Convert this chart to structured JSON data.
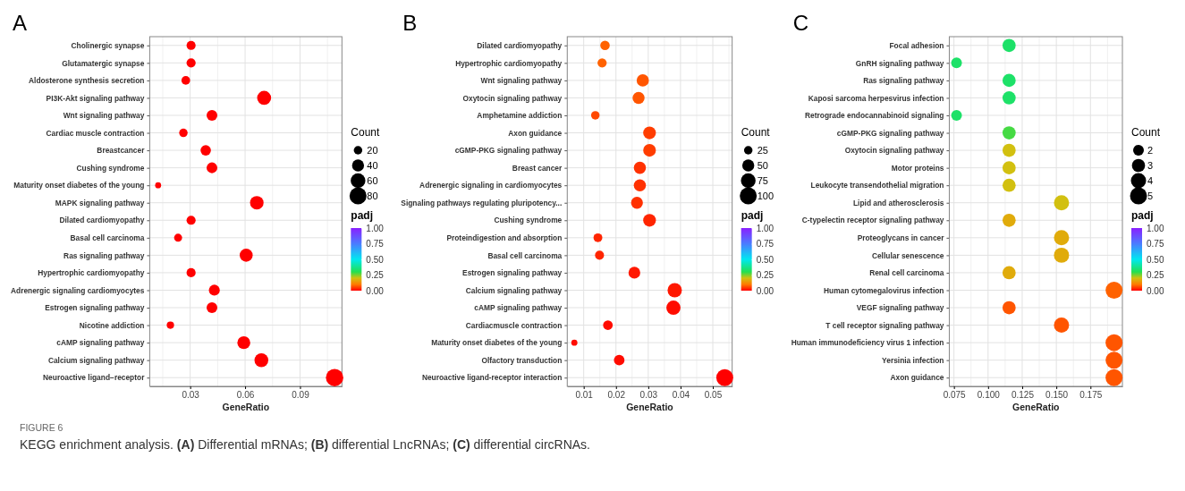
{
  "chart_data": [
    {
      "type": "bubble",
      "title": "A",
      "xlabel": "GeneRatio",
      "legend_title": "Count",
      "clabel": "padj",
      "orientation": "horizontal",
      "grid": true,
      "categories": [
        "Cholinergic synapse",
        "Glutamatergic synapse",
        "Aldosterone synthesis secretion",
        "PI3K-Akt signaling pathway",
        "Wnt signaling pathway",
        "Cardiac muscle contraction",
        "Breastcancer",
        "Cushing syndrome",
        "Maturity onset diabetes of the young",
        "MAPK signaling pathway",
        "Dilated cardiomyopathy",
        "Basal cell carcinoma",
        "Ras signaling pathway",
        "Hypertrophic cardiomyopathy",
        "Adrenergic signaling cardiomyocytes",
        "Estrogen signaling pathway",
        "Nicotine addiction",
        "cAMP signaling pathway",
        "Calcium signaling pathway",
        "Neuroactive ligand−receptor"
      ],
      "values": [
        0.0305,
        0.0305,
        0.0276,
        0.0704,
        0.0419,
        0.0263,
        0.0385,
        0.0419,
        0.0125,
        0.0664,
        0.0305,
        0.0234,
        0.0606,
        0.0305,
        0.0432,
        0.0419,
        0.0192,
        0.0593,
        0.0689,
        0.1089
      ],
      "sizes": [
        23,
        23,
        21,
        54,
        32,
        20,
        30,
        32,
        10,
        51,
        23,
        18,
        47,
        23,
        33,
        32,
        15,
        46,
        53,
        84
      ],
      "size_legend": [
        20,
        40,
        60,
        80
      ],
      "cvalues": [
        0,
        0,
        0,
        0,
        0,
        0,
        0,
        0,
        0,
        0,
        0,
        0,
        0,
        0,
        0,
        0,
        0,
        0,
        0,
        0
      ],
      "clim": [
        0,
        1
      ],
      "cticks": [
        {
          "value": 0,
          "label": "0.00"
        },
        {
          "value": 0.25,
          "label": "0.25"
        },
        {
          "value": 0.5,
          "label": "0.50"
        },
        {
          "value": 0.75,
          "label": "0.75"
        },
        {
          "value": 1,
          "label": "1.00"
        }
      ],
      "xlim": [
        0.0079,
        0.1129
      ],
      "xticks": [
        0.03,
        0.06,
        0.09
      ],
      "annotations": [
        "FIGURE 6",
        "KEGG enrichment analysis. (A) Differential mRNAs; (B) differential LncRNAs; (C) differential circRNAs."
      ]
    },
    {
      "type": "bubble",
      "title": "B",
      "xlabel": "GeneRatio",
      "legend_title": "Count",
      "clabel": "padj",
      "orientation": "horizontal",
      "grid": true,
      "categories": [
        "Dilated cardiomyopathy",
        "Hypertrophic cardiomyopathy",
        "Wnt signaling pathway",
        "Oxytocin signaling pathway",
        "Amphetamine addiction",
        "Axon guidance",
        "cGMP-PKG signaling pathway",
        "Breast cancer",
        "Adrenergic signaling in cardiomyocytes",
        "Signaling pathways regulating pluripotency...",
        "Cushing syndrome",
        "Proteindigestion and absorption",
        "Basal cell carcinoma",
        "Estrogen signaling pathway",
        "Calcium signaling pathway",
        "cAMP signaling pathway",
        "Cardiacmuscle contraction",
        "Maturity onset diabetes of the young",
        "Olfactory transduction",
        "Neuroactive ligand-receptor interaction"
      ],
      "values": [
        0.0166,
        0.0157,
        0.0283,
        0.027,
        0.0136,
        0.0304,
        0.0304,
        0.0274,
        0.0274,
        0.0265,
        0.0304,
        0.0144,
        0.0149,
        0.0257,
        0.0382,
        0.0378,
        0.0175,
        0.0071,
        0.021,
        0.0537
      ],
      "sizes": [
        31,
        29,
        52,
        50,
        25,
        56,
        56,
        51,
        51,
        49,
        56,
        27,
        28,
        48,
        71,
        70,
        32,
        13,
        39,
        99
      ],
      "size_legend": [
        25,
        50,
        75,
        100
      ],
      "cvalues": [
        0.08,
        0.08,
        0.07,
        0.07,
        0.06,
        0.05,
        0.05,
        0.04,
        0.04,
        0.04,
        0.03,
        0.03,
        0.03,
        0.02,
        0.02,
        0.01,
        0.01,
        0.01,
        0.01,
        0
      ],
      "clim": [
        0,
        1
      ],
      "cticks": [
        {
          "value": 0,
          "label": "0.00"
        },
        {
          "value": 0.25,
          "label": "0.25"
        },
        {
          "value": 0.5,
          "label": "0.50"
        },
        {
          "value": 0.75,
          "label": "0.75"
        },
        {
          "value": 1,
          "label": "1.00"
        }
      ],
      "xlim": [
        0.0049,
        0.056
      ],
      "xticks": [
        0.01,
        0.02,
        0.03,
        0.04,
        0.05
      ]
    },
    {
      "type": "bubble",
      "title": "C",
      "xlabel": "GeneRatio",
      "legend_title": "Count",
      "clabel": "padj",
      "orientation": "horizontal",
      "grid": true,
      "categories": [
        "Focal adhesion",
        "GnRH signaling pathway",
        "Ras signaling pathway",
        "Kaposi sarcoma herpesvirus infection",
        "Retrograde endocannabinoid signaling",
        "cGMP-PKG signaling pathway",
        "Oxytocin signaling pathway",
        "Motor proteins",
        "Leukocyte transendothelial migration",
        "Lipid and atherosclerosis",
        "C-typelectin receptor signaling pathway",
        "Proteoglycans in cancer",
        "Cellular senescence",
        "Renal cell carcinoma",
        "Human cytomegalovirus infection",
        "VEGF signaling pathway",
        "T cell receptor signaling pathway",
        "Human immunodeficiency virus 1 infection",
        "Yersinia infection",
        "Axon guidance"
      ],
      "values": [
        0.1154,
        0.0769,
        0.1154,
        0.1154,
        0.0769,
        0.1154,
        0.1154,
        0.1154,
        0.1154,
        0.1538,
        0.1154,
        0.1538,
        0.1538,
        0.1154,
        0.1923,
        0.1154,
        0.1538,
        0.1923,
        0.1923,
        0.1923
      ],
      "sizes": [
        3,
        2,
        3,
        3,
        2,
        3,
        3,
        3,
        3,
        4,
        3,
        4,
        4,
        3,
        5,
        3,
        4,
        5,
        5,
        5
      ],
      "size_legend": [
        2,
        3,
        4,
        5
      ],
      "cvalues": [
        0.33,
        0.33,
        0.33,
        0.33,
        0.33,
        0.28,
        0.2,
        0.2,
        0.2,
        0.2,
        0.17,
        0.17,
        0.17,
        0.17,
        0.08,
        0.07,
        0.07,
        0.07,
        0.07,
        0.07
      ],
      "clim": [
        0,
        1
      ],
      "cticks": [
        {
          "value": 0,
          "label": "0.00"
        },
        {
          "value": 0.25,
          "label": "0.25"
        },
        {
          "value": 0.5,
          "label": "0.50"
        },
        {
          "value": 0.75,
          "label": "0.75"
        },
        {
          "value": 1,
          "label": "1.00"
        }
      ],
      "xlim": [
        0.0716,
        0.1984
      ],
      "xticks": [
        {
          "value": 0.075,
          "label": "0.075"
        },
        {
          "value": 0.1,
          "label": "0.100"
        },
        {
          "value": 0.125,
          "label": "0.125"
        },
        {
          "value": 0.15,
          "label": "0.150"
        },
        {
          "value": 0.175,
          "label": "0.175"
        }
      ]
    }
  ]
}
